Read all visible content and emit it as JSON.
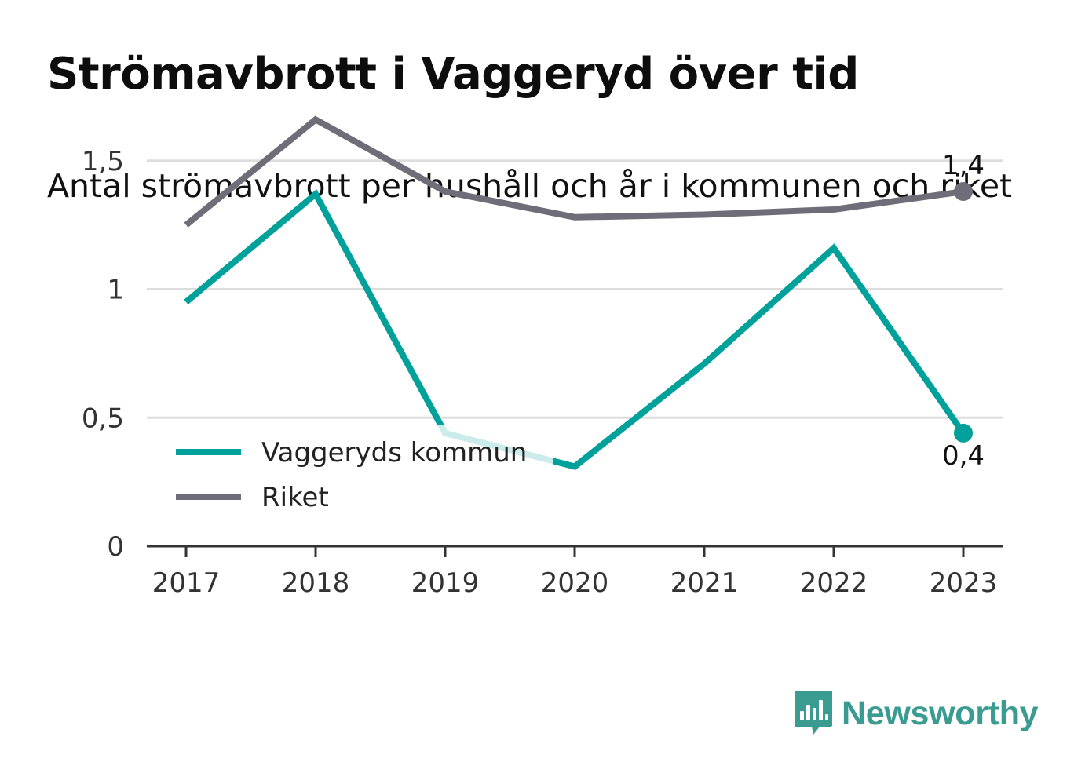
{
  "title": "Strömavbrott i Vaggeryd över tid",
  "subtitle": "Antal strömavbrott per hushåll och år i kommunen och riket",
  "brand": {
    "name": "Newsworthy",
    "icon": "bar-chart-speech-bubble-icon",
    "color": "#3a9c91"
  },
  "chart_data": {
    "type": "line",
    "x": [
      "2017",
      "2018",
      "2019",
      "2020",
      "2021",
      "2022",
      "2023"
    ],
    "series": [
      {
        "name": "Vaggeryds kommun",
        "color": "#00a19a",
        "values": [
          0.95,
          1.37,
          0.44,
          0.31,
          0.71,
          1.16,
          0.44
        ]
      },
      {
        "name": "Riket",
        "color": "#6f6d78",
        "values": [
          1.25,
          1.66,
          1.38,
          1.28,
          1.29,
          1.31,
          1.38
        ]
      }
    ],
    "yticks": [
      {
        "value": 0,
        "label": "0"
      },
      {
        "value": 0.5,
        "label": "0,5"
      },
      {
        "value": 1,
        "label": "1"
      },
      {
        "value": 1.5,
        "label": "1,5"
      }
    ],
    "ylim": [
      0,
      1.7
    ],
    "grid": true,
    "legend_position": "left-middle",
    "end_labels": {
      "Vaggeryds kommun": "0,4",
      "Riket": "1,4"
    }
  }
}
